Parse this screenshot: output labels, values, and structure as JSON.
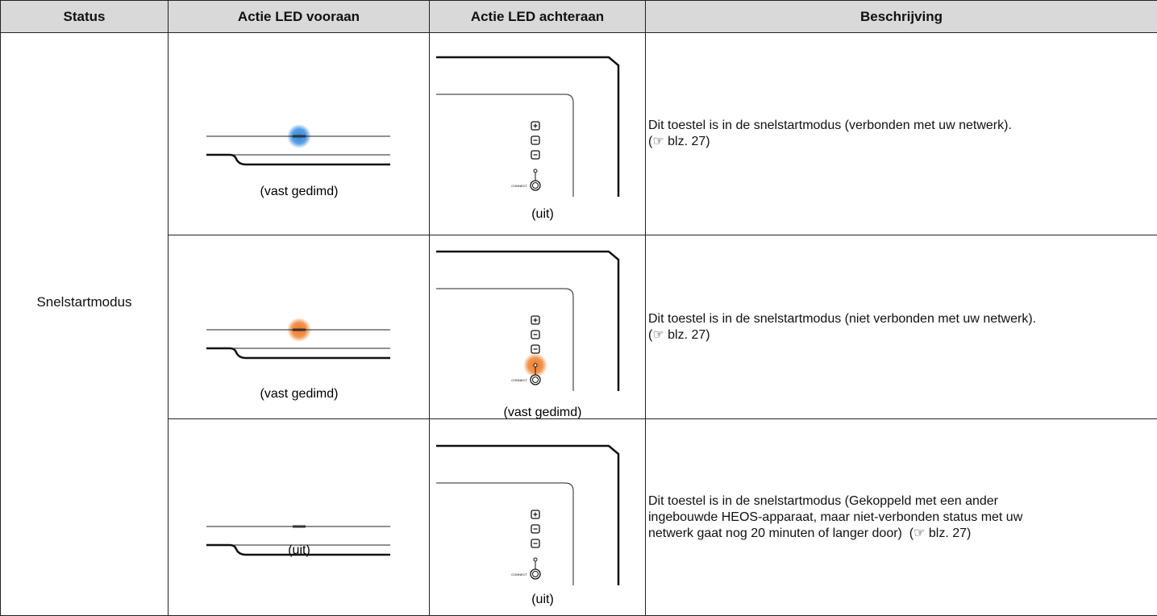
{
  "table": {
    "headers": [
      "Status",
      "Actie LED vooraan",
      "Actie LED achteraan",
      "Beschrijving"
    ],
    "status": "Snelstartmodus",
    "connect_label": "CONNECT",
    "rows": [
      {
        "front": {
          "caption": "(vast gedimd)",
          "glow": "#2f86e0"
        },
        "rear": {
          "caption": "(uit)",
          "glow": null
        },
        "description": [
          "Dit toestel is in de snelstartmodus (verbonden met uw netwerk).",
          "(☞ blz. 27)"
        ]
      },
      {
        "front": {
          "caption": "(vast gedimd)",
          "glow": "#ee7a22"
        },
        "rear": {
          "caption": "(vast gedimd)",
          "glow": "#ee7a22"
        },
        "description": [
          "Dit toestel is in de snelstartmodus (niet verbonden met uw netwerk).",
          "(☞ blz. 27)"
        ]
      },
      {
        "front": {
          "caption": "(uit)",
          "glow": null
        },
        "rear": {
          "caption": "(uit)",
          "glow": null
        },
        "description": [
          "Dit toestel is in de snelstartmodus (Gekoppeld met een ander",
          "ingebouwde HEOS-apparaat, maar niet-verbonden status met uw",
          "netwerk gaat nog 20 minuten of langer door)  (☞ blz. 27)"
        ]
      }
    ]
  }
}
